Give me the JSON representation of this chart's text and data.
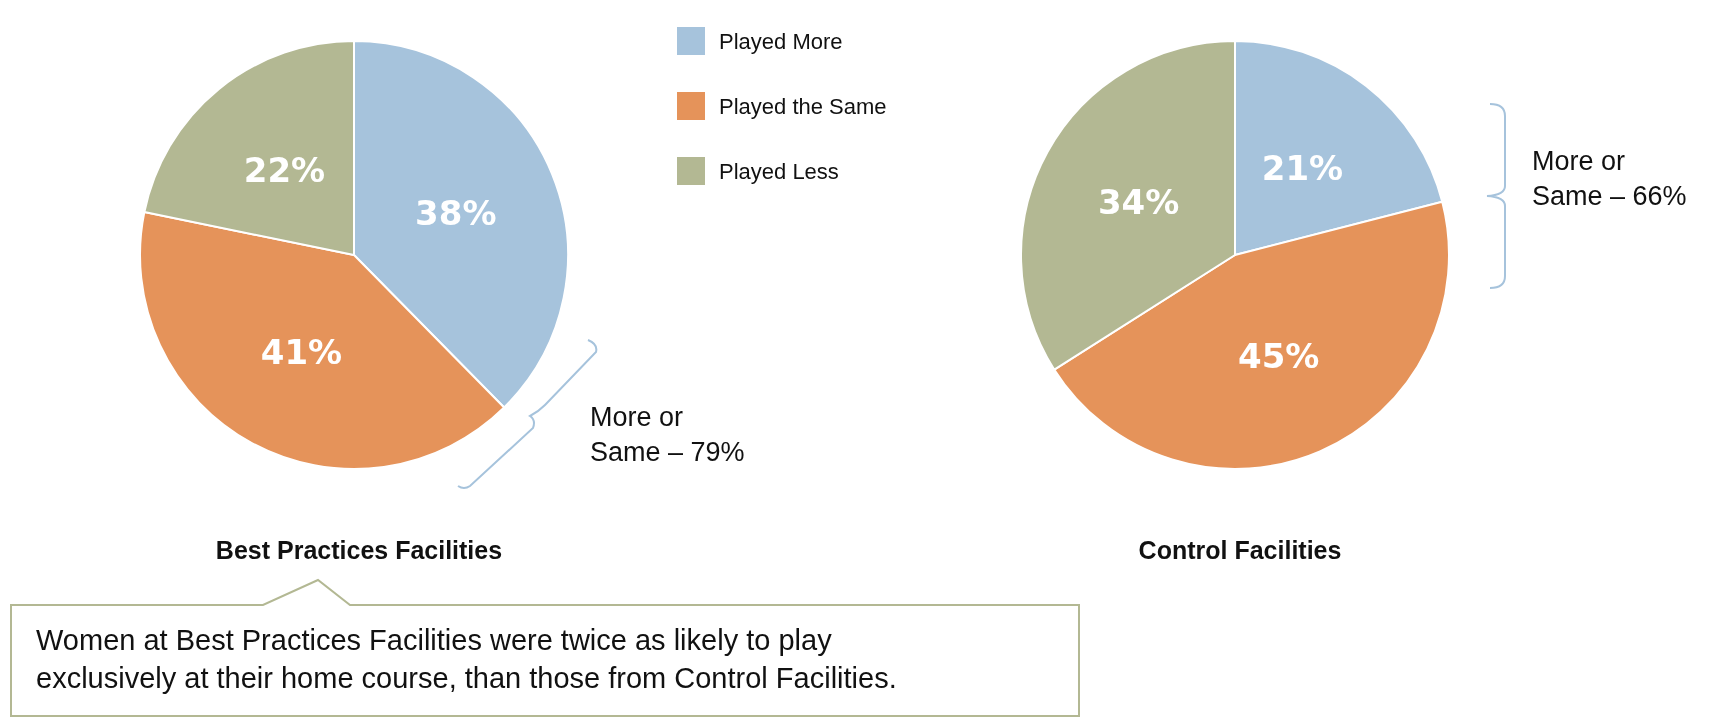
{
  "chart_data": [
    {
      "type": "pie",
      "title": "Best Practices Facilities",
      "categories": [
        "Played More",
        "Played the Same",
        "Played Less"
      ],
      "values": [
        38,
        41,
        22
      ],
      "value_labels": [
        "38%",
        "41%",
        "22%"
      ],
      "colors": [
        "#a6c3dc",
        "#e5935a",
        "#b3b893"
      ],
      "legend": "right",
      "annotations": [
        "More or Same – 79%",
        "Women at Best Practices Facilities were twice as likely to play exclusively at their home course, than those from Control Facilities."
      ]
    },
    {
      "type": "pie",
      "title": "Control Facilities",
      "categories": [
        null,
        null,
        null
      ],
      "values": [
        21,
        45,
        34
      ],
      "value_labels": [
        "21%",
        "45%",
        "34%"
      ],
      "colors": [
        "#a6c3dc",
        "#e5935a",
        "#b3b893"
      ],
      "annotations": [
        "More or Same – 66%"
      ]
    }
  ]
}
